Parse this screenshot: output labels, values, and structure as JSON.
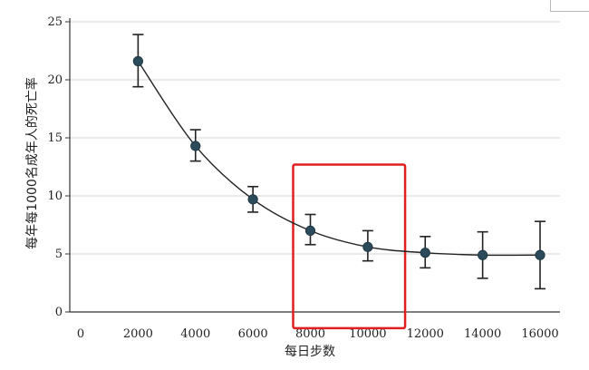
{
  "chart_data": {
    "type": "line",
    "xlabel": "每日步数",
    "ylabel": "每年每1000名成年人的死亡率",
    "xlim": [
      0,
      16000
    ],
    "ylim": [
      0,
      25
    ],
    "x_ticks": [
      0,
      2000,
      4000,
      6000,
      8000,
      10000,
      12000,
      14000,
      16000
    ],
    "y_ticks": [
      0,
      5,
      10,
      15,
      20,
      25
    ],
    "grid": "horizontal",
    "series": [
      {
        "x": [
          2000,
          4000,
          6000,
          8000,
          10000,
          12000,
          14000,
          16000
        ],
        "y": [
          21.6,
          14.3,
          9.7,
          7.0,
          5.6,
          5.1,
          4.9,
          4.9
        ],
        "err_low": [
          19.4,
          13.0,
          8.6,
          5.8,
          4.4,
          3.8,
          2.9,
          2.0
        ],
        "err_high": [
          23.9,
          15.7,
          10.8,
          8.4,
          7.0,
          6.5,
          6.9,
          7.8
        ],
        "color": "#2b4a5a"
      }
    ],
    "highlight": {
      "x_range": [
        7400,
        11300
      ],
      "y_range": [
        -1.4,
        12.7
      ],
      "color": "#e02020"
    }
  }
}
